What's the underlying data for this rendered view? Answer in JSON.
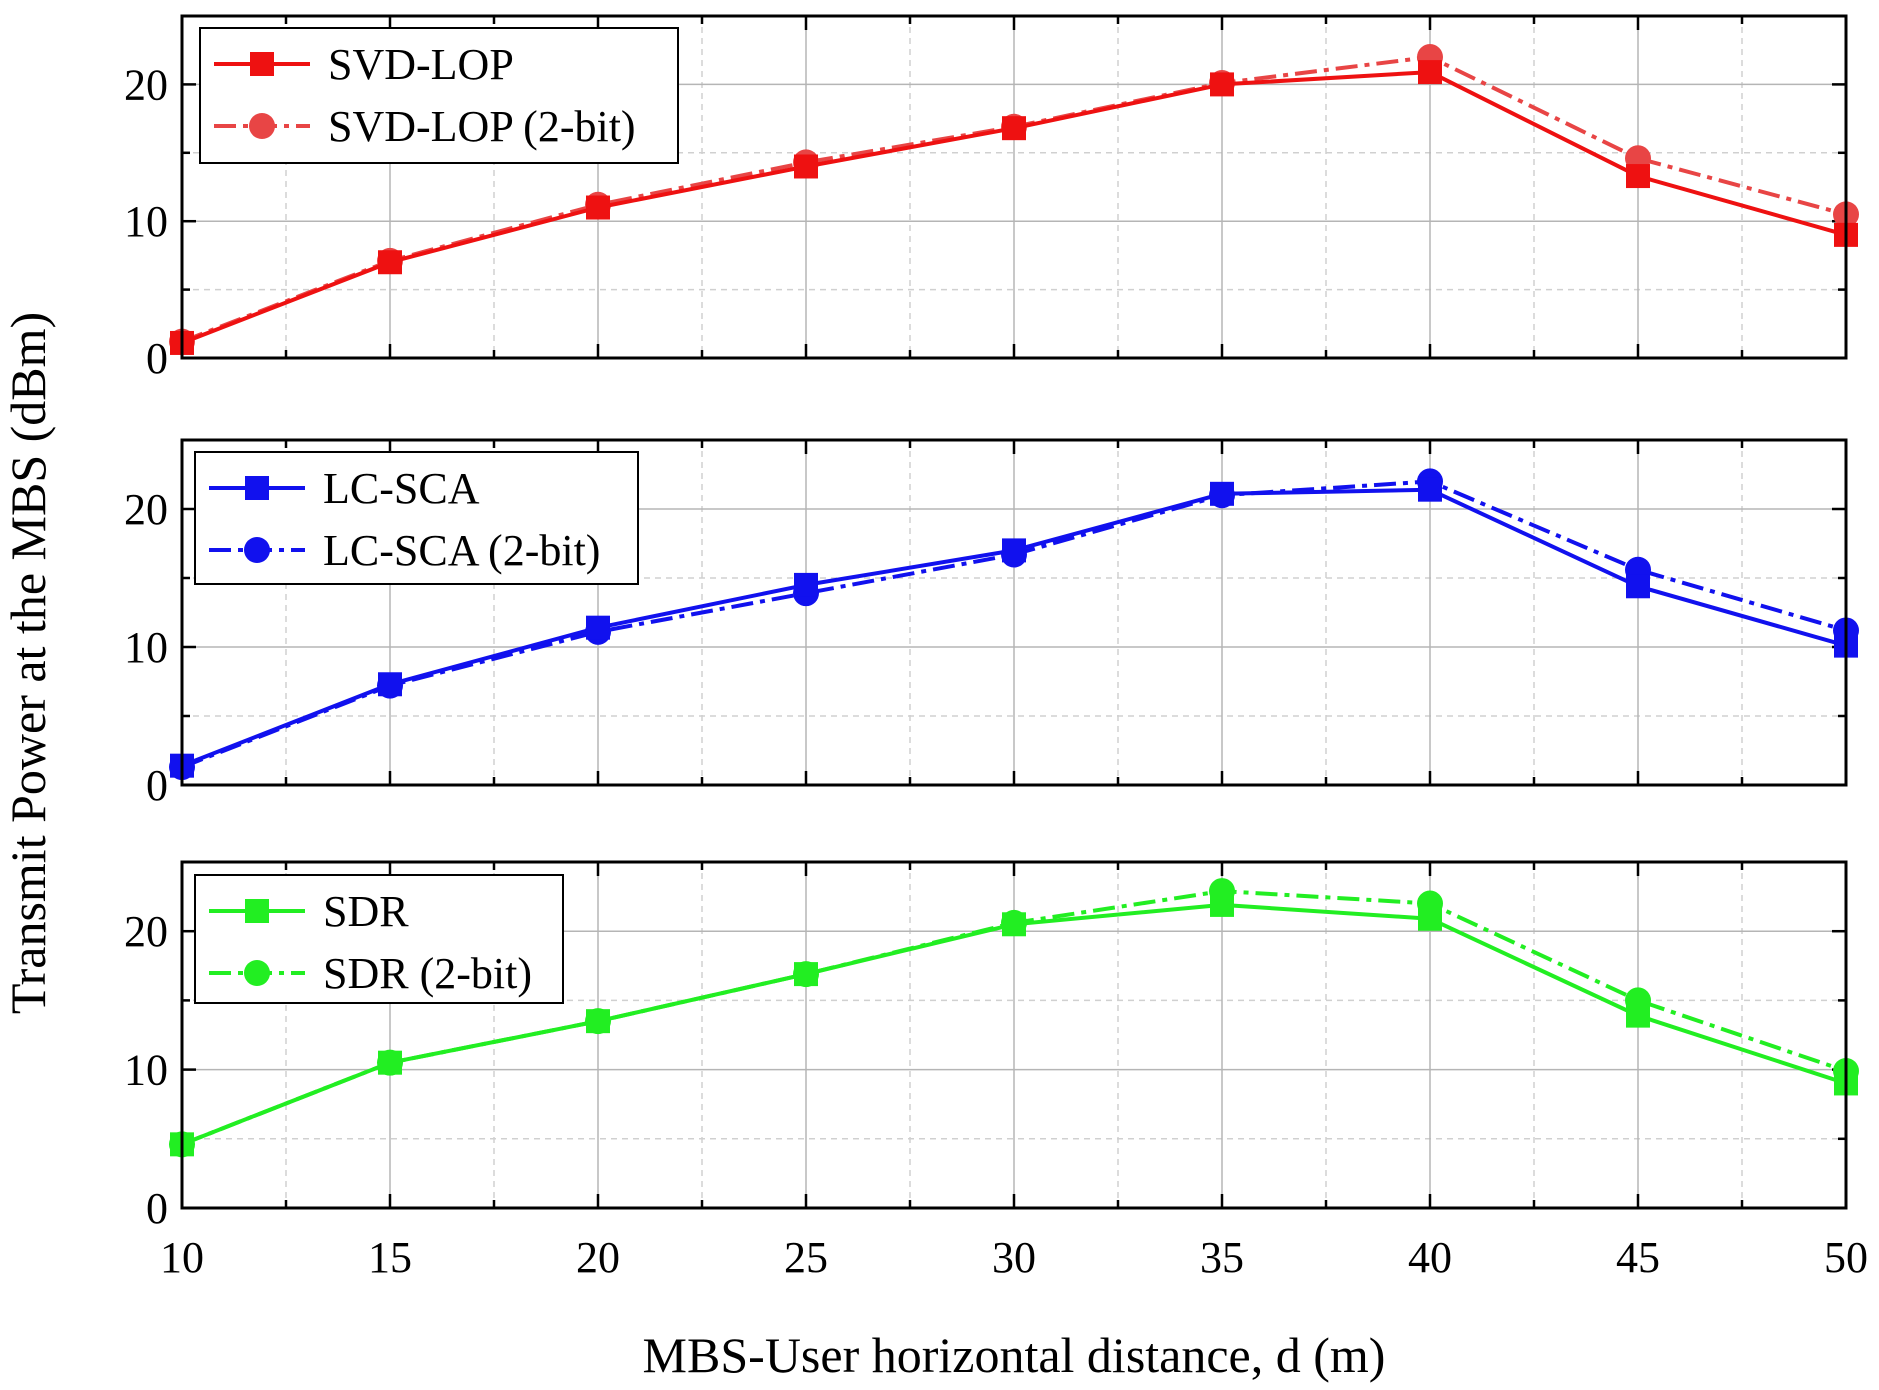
{
  "figure": {
    "ylabel": "Transmit Power at the MBS (dBm)",
    "xlabel": "MBS-User horizontal distance, d (m)"
  },
  "chart_data": [
    {
      "type": "line",
      "title": "",
      "xlabel": "MBS-User horizontal distance, d (m)",
      "ylabel": "Transmit Power at the MBS (dBm)",
      "xlim": [
        10,
        50
      ],
      "ylim": [
        0,
        25
      ],
      "x": [
        10,
        15,
        20,
        25,
        30,
        35,
        40,
        45,
        50
      ],
      "xticks": [
        "10",
        "15",
        "20",
        "25",
        "30",
        "35",
        "40",
        "45",
        "50"
      ],
      "yticks": [
        "0",
        "10",
        "20"
      ],
      "grid": true,
      "legend_position": "top-left",
      "series": [
        {
          "name": "SVD-LOP",
          "color": "#ee1111",
          "style": "solid",
          "marker": "square",
          "values": [
            1.1,
            7.0,
            11.0,
            14.0,
            16.8,
            20.0,
            20.9,
            13.3,
            9.0
          ]
        },
        {
          "name": "SVD-LOP (2-bit)",
          "color": "#e84545",
          "style": "dashdot",
          "marker": "circle",
          "values": [
            1.2,
            7.1,
            11.2,
            14.3,
            16.9,
            20.1,
            22.0,
            14.6,
            10.5
          ]
        }
      ]
    },
    {
      "type": "line",
      "title": "",
      "xlabel": "MBS-User horizontal distance, d (m)",
      "ylabel": "Transmit Power at the MBS (dBm)",
      "xlim": [
        10,
        50
      ],
      "ylim": [
        0,
        25
      ],
      "x": [
        10,
        15,
        20,
        25,
        30,
        35,
        40,
        45,
        50
      ],
      "xticks": [
        "10",
        "15",
        "20",
        "25",
        "30",
        "35",
        "40",
        "45",
        "50"
      ],
      "yticks": [
        "0",
        "10",
        "20"
      ],
      "grid": true,
      "legend_position": "top-left",
      "series": [
        {
          "name": "LC-SCA",
          "color": "#1111ee",
          "style": "solid",
          "marker": "square",
          "values": [
            1.4,
            7.3,
            11.4,
            14.5,
            17.0,
            21.1,
            21.4,
            14.4,
            10.1
          ]
        },
        {
          "name": "LC-SCA (2-bit)",
          "color": "#1111ee",
          "style": "dashdot",
          "marker": "circle",
          "values": [
            1.3,
            7.2,
            11.1,
            13.9,
            16.7,
            21.0,
            22.0,
            15.6,
            11.2
          ]
        }
      ]
    },
    {
      "type": "line",
      "title": "",
      "xlabel": "MBS-User horizontal distance, d (m)",
      "ylabel": "Transmit Power at the MBS (dBm)",
      "xlim": [
        10,
        50
      ],
      "ylim": [
        0,
        25
      ],
      "x": [
        10,
        15,
        20,
        25,
        30,
        35,
        40,
        45,
        50
      ],
      "xticks": [
        "10",
        "15",
        "20",
        "25",
        "30",
        "35",
        "40",
        "45",
        "50"
      ],
      "yticks": [
        "0",
        "10",
        "20"
      ],
      "grid": true,
      "legend_position": "top-left",
      "series": [
        {
          "name": "SDR",
          "color": "#22ee22",
          "style": "solid",
          "marker": "square",
          "values": [
            4.6,
            10.5,
            13.5,
            16.9,
            20.5,
            21.9,
            20.9,
            13.9,
            9.0
          ]
        },
        {
          "name": "SDR (2-bit)",
          "color": "#22ee22",
          "style": "dashdot",
          "marker": "circle",
          "values": [
            4.6,
            10.5,
            13.5,
            16.9,
            20.6,
            22.9,
            22.0,
            15.0,
            9.9
          ]
        }
      ]
    }
  ]
}
